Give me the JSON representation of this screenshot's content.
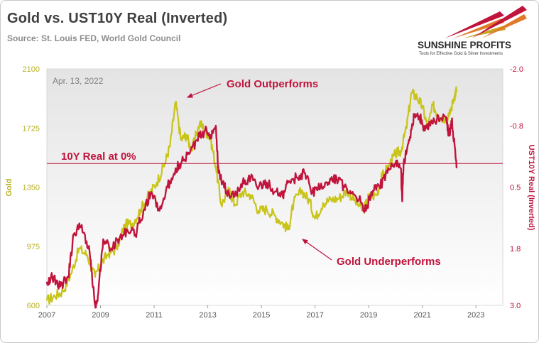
{
  "title": "Gold vs. UST10Y Real (Inverted)",
  "source": "Source: St. Louis FED, World Gold Council",
  "logo": {
    "brand": "SUNSHINE PROFITS",
    "tagline": "Tools for Effective Gold & Silver Investments"
  },
  "colors": {
    "gold": "#c8c41a",
    "real": "#c0143c",
    "annotation": "#c0143c",
    "plot_top": "#e4e4e4",
    "plot_bottom": "#ffffff"
  },
  "chart_data": {
    "type": "line",
    "date_label": "Apr. 13, 2022",
    "x_ticks": [
      "2007",
      "2009",
      "2011",
      "2013",
      "2015",
      "2017",
      "2019",
      "2021",
      "2023"
    ],
    "xlim": [
      2007,
      2024
    ],
    "left_axis": {
      "label": "Gold",
      "ticks": [
        "600",
        "975",
        "1350",
        "1725",
        "2100"
      ],
      "ylim": [
        600,
        2100
      ]
    },
    "right_axis": {
      "label": "UST10Y Real (Inverted)",
      "ticks": [
        "-2.0",
        "-0.8",
        "0.5",
        "1.8",
        "3.0"
      ],
      "ylim": [
        -2.0,
        3.0
      ],
      "inverted": true
    },
    "reference_line": {
      "label": "10Y Real at 0%",
      "axis": "right",
      "value": 0.0
    },
    "annotations": [
      "Gold Outperforms",
      "Gold Underperforms"
    ],
    "series": [
      {
        "name": "Gold",
        "axis": "left",
        "x": [
          2007.0,
          2007.3,
          2007.6,
          2007.9,
          2008.2,
          2008.5,
          2008.8,
          2009.0,
          2009.3,
          2009.6,
          2009.9,
          2010.2,
          2010.5,
          2010.8,
          2011.1,
          2011.4,
          2011.6,
          2011.8,
          2012.0,
          2012.2,
          2012.4,
          2012.7,
          2012.9,
          2013.1,
          2013.3,
          2013.5,
          2013.8,
          2014.0,
          2014.3,
          2014.6,
          2014.9,
          2015.2,
          2015.5,
          2015.8,
          2016.0,
          2016.2,
          2016.5,
          2016.8,
          2017.0,
          2017.3,
          2017.6,
          2017.9,
          2018.2,
          2018.5,
          2018.8,
          2019.0,
          2019.3,
          2019.5,
          2019.8,
          2020.0,
          2020.2,
          2020.4,
          2020.6,
          2020.8,
          2021.0,
          2021.2,
          2021.4,
          2021.6,
          2021.8,
          2022.0,
          2022.2,
          2022.28
        ],
        "y": [
          630,
          660,
          690,
          800,
          960,
          920,
          780,
          860,
          930,
          960,
          1110,
          1120,
          1210,
          1300,
          1380,
          1500,
          1620,
          1890,
          1650,
          1680,
          1580,
          1760,
          1710,
          1660,
          1480,
          1240,
          1330,
          1240,
          1320,
          1300,
          1200,
          1210,
          1170,
          1120,
          1080,
          1250,
          1330,
          1260,
          1150,
          1250,
          1270,
          1280,
          1330,
          1260,
          1200,
          1290,
          1300,
          1420,
          1500,
          1560,
          1580,
          1720,
          1950,
          1920,
          1860,
          1730,
          1870,
          1800,
          1790,
          1800,
          1930,
          1970
        ]
      },
      {
        "name": "UST10Y Real",
        "axis": "right",
        "x": [
          2007.0,
          2007.2,
          2007.5,
          2007.8,
          2008.0,
          2008.3,
          2008.6,
          2008.8,
          2008.9,
          2009.1,
          2009.4,
          2009.7,
          2010.0,
          2010.3,
          2010.6,
          2010.9,
          2011.2,
          2011.5,
          2011.8,
          2012.0,
          2012.3,
          2012.6,
          2012.9,
          2013.1,
          2013.3,
          2013.4,
          2013.7,
          2014.0,
          2014.3,
          2014.6,
          2014.9,
          2015.2,
          2015.5,
          2015.8,
          2016.0,
          2016.3,
          2016.6,
          2016.9,
          2017.2,
          2017.5,
          2017.8,
          2018.1,
          2018.4,
          2018.7,
          2018.9,
          2019.1,
          2019.4,
          2019.7,
          2020.0,
          2020.2,
          2020.25,
          2020.3,
          2020.5,
          2020.7,
          2020.9,
          2021.1,
          2021.3,
          2021.6,
          2021.9,
          2022.0,
          2022.1,
          2022.2,
          2022.28
        ],
        "y": [
          2.5,
          2.4,
          2.6,
          2.4,
          1.5,
          1.3,
          1.9,
          3.0,
          2.8,
          1.6,
          1.8,
          1.6,
          1.4,
          1.5,
          1.0,
          0.6,
          1.0,
          0.5,
          0.1,
          0.0,
          -0.2,
          -0.5,
          -0.7,
          -0.6,
          -0.8,
          0.2,
          0.6,
          0.7,
          0.4,
          0.3,
          0.5,
          0.4,
          0.6,
          0.7,
          0.4,
          0.3,
          0.2,
          0.6,
          0.5,
          0.4,
          0.3,
          0.5,
          0.6,
          0.8,
          1.0,
          0.6,
          0.5,
          0.2,
          0.0,
          0.1,
          0.8,
          0.0,
          -0.5,
          -1.0,
          -1.0,
          -0.7,
          -0.8,
          -1.0,
          -0.9,
          -0.6,
          -0.9,
          -0.4,
          0.1
        ]
      }
    ]
  }
}
